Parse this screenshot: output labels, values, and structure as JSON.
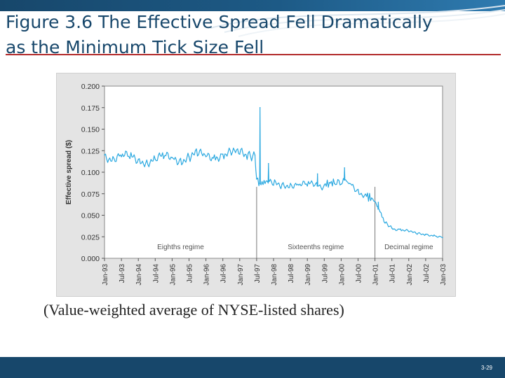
{
  "slide": {
    "title": "Figure 3.6 The Effective Spread Fell Dramatically as the Minimum Tick Size Fell",
    "caption": "(Value-weighted average of NYSE-listed shares)",
    "slide_number": "3-29",
    "colors": {
      "accent": "#17476b",
      "rule": "#b22a2a",
      "series": "#2aa8e0"
    }
  },
  "chart_data": {
    "type": "line",
    "title": "",
    "xlabel": "",
    "ylabel": "Effective spread ($)",
    "ylim": [
      0,
      0.2
    ],
    "yticks": [
      "0.200",
      "0.175",
      "0.150",
      "0.125",
      "0.100",
      "0.075",
      "0.050",
      "0.025",
      "0.000"
    ],
    "xticks": [
      "Jan-93",
      "Jul-93",
      "Jan-94",
      "Jul-94",
      "Jan-95",
      "Jul-95",
      "Jan-96",
      "Jul-96",
      "Jan-97",
      "Jul-97",
      "Jan-98",
      "Jul-98",
      "Jan-99",
      "Jul-99",
      "Jan-00",
      "Jul-00",
      "Jan-01",
      "Jul-01",
      "Jan-02",
      "Jul-02",
      "Jan-03"
    ],
    "regimes": [
      {
        "label": "Eighths regime",
        "start": 0,
        "end": 9
      },
      {
        "label": "Sixteenths regime",
        "start": 9,
        "end": 16
      },
      {
        "label": "Decimal regime",
        "start": 16,
        "end": 20
      }
    ],
    "series": [
      {
        "name": "Effective spread",
        "x": [
          0,
          0.5,
          1,
          1.5,
          2,
          2.5,
          3,
          3.5,
          4,
          4.5,
          5,
          5.5,
          6,
          6.5,
          7,
          7.5,
          8,
          8.5,
          8.9,
          9.0,
          9.2,
          9.5,
          10,
          10.5,
          11,
          11.5,
          12,
          12.5,
          13,
          13.3,
          13.6,
          14,
          14.2,
          14.5,
          15,
          15.5,
          15.8,
          16.0,
          16.3,
          16.6,
          17,
          17.5,
          18,
          18.5,
          19,
          19.5,
          20
        ],
        "values": [
          0.12,
          0.118,
          0.118,
          0.116,
          0.115,
          0.114,
          0.115,
          0.116,
          0.117,
          0.116,
          0.118,
          0.119,
          0.118,
          0.12,
          0.121,
          0.12,
          0.121,
          0.122,
          0.12,
          0.092,
          0.088,
          0.087,
          0.085,
          0.086,
          0.087,
          0.085,
          0.084,
          0.087,
          0.085,
          0.088,
          0.087,
          0.086,
          0.091,
          0.087,
          0.08,
          0.072,
          0.07,
          0.066,
          0.054,
          0.041,
          0.035,
          0.034,
          0.031,
          0.028,
          0.028,
          0.027,
          0.024
        ]
      }
    ],
    "spikes": [
      {
        "x": 9.2,
        "value": 0.175
      },
      {
        "x": 14.2,
        "value": 0.105
      },
      {
        "x": 9.7,
        "value": 0.11
      },
      {
        "x": 12.6,
        "value": 0.098
      },
      {
        "x": 16.2,
        "value": 0.065
      }
    ]
  }
}
